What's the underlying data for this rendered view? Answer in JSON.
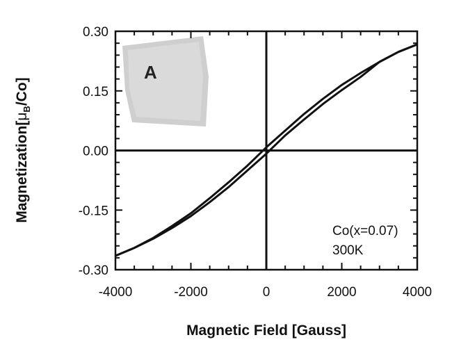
{
  "chart_data": {
    "type": "line",
    "xlabel": "Magnetic Field [Gauss]",
    "ylabel_main": "Magnetization[",
    "ylabel_mu": "μ",
    "ylabel_sub": "B",
    "ylabel_tail": "/Co]",
    "xlim": [
      -4000,
      4000
    ],
    "ylim": [
      -0.3,
      0.3
    ],
    "x_ticks": [
      -4000,
      -2000,
      0,
      2000,
      4000
    ],
    "x_tick_labels": [
      "-4000",
      "-2000",
      "0",
      "2000",
      "4000"
    ],
    "y_ticks": [
      0.3,
      0.15,
      0.0,
      -0.15,
      -0.3
    ],
    "y_tick_labels": [
      "0.30",
      "0.15",
      "0.00",
      "-0.15",
      "-0.30"
    ],
    "zero_lines": true,
    "annotations": [
      "Co(x=0.07)",
      "300K"
    ],
    "inset_letter": "A",
    "series": [
      {
        "x": [
          -4000,
          -3500,
          -3000,
          -2500,
          -2000,
          -1500,
          -1000,
          -500,
          0,
          500,
          1000,
          1500,
          2000,
          2500,
          3000,
          3500,
          4000
        ],
        "y": [
          -0.265,
          -0.245,
          -0.222,
          -0.195,
          -0.165,
          -0.13,
          -0.092,
          -0.05,
          -0.008,
          0.038,
          0.078,
          0.117,
          0.152,
          0.185,
          0.223,
          0.248,
          0.267
        ]
      },
      {
        "x": [
          -4000,
          -3500,
          -3000,
          -2500,
          -2000,
          -1500,
          -1000,
          -500,
          0,
          500,
          1000,
          1500,
          2000,
          2500,
          3000,
          3500,
          4000
        ],
        "y": [
          -0.265,
          -0.245,
          -0.22,
          -0.19,
          -0.158,
          -0.12,
          -0.08,
          -0.038,
          0.008,
          0.05,
          0.092,
          0.13,
          0.165,
          0.195,
          0.223,
          0.248,
          0.267
        ]
      }
    ]
  }
}
